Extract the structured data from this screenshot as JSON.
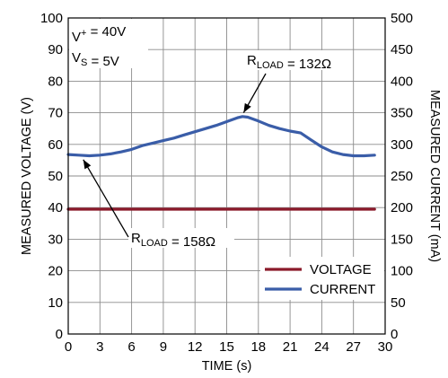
{
  "chart_data": {
    "type": "line",
    "x_axis": {
      "label": "TIME (s)",
      "range": [
        0,
        30
      ],
      "ticks": [
        "0",
        "3",
        "6",
        "9",
        "12",
        "15",
        "18",
        "21",
        "24",
        "27",
        "30"
      ]
    },
    "y_axis_left": {
      "label": "MEASURED VOLTAGE (V)",
      "range": [
        0,
        100
      ],
      "ticks": [
        "0",
        "10",
        "20",
        "30",
        "40",
        "50",
        "60",
        "70",
        "80",
        "90",
        "100"
      ]
    },
    "y_axis_right": {
      "label": "MEASURED CURRENT (mA)",
      "range": [
        0,
        500
      ],
      "ticks": [
        "0",
        "50",
        "100",
        "150",
        "200",
        "250",
        "300",
        "350",
        "400",
        "450",
        "500"
      ]
    },
    "grid": true,
    "legend_position": "bottom-right",
    "series": [
      {
        "name": "VOLTAGE",
        "axis": "left",
        "color": "#8b1a2b",
        "x": [
          0,
          29
        ],
        "y": [
          39.5,
          39.5
        ]
      },
      {
        "name": "CURRENT",
        "axis": "right",
        "color": "#3a5da8",
        "x": [
          0,
          1,
          2,
          3,
          4,
          5,
          6,
          7,
          8,
          9,
          10,
          11,
          12,
          13,
          14,
          15,
          16,
          16.5,
          17,
          18,
          19,
          20,
          21,
          22,
          23,
          24,
          25,
          26,
          27,
          28,
          29
        ],
        "y": [
          284,
          283,
          282,
          283,
          285,
          288,
          292,
          298,
          302,
          306,
          310,
          315,
          320,
          325,
          330,
          336,
          342,
          344,
          343,
          337,
          330,
          325,
          321,
          318,
          307,
          296,
          288,
          284,
          282,
          282,
          283
        ]
      }
    ],
    "annotations": [
      {
        "lines": [
          [
            {
              "t": "V",
              "sub": false
            },
            {
              "t": "+",
              "sup": true
            },
            {
              "t": " = 40V",
              "sub": false
            }
          ],
          [
            {
              "t": "V",
              "sub": false
            },
            {
              "t": "S",
              "sub": true
            },
            {
              "t": " = 5V",
              "sub": false
            }
          ]
        ]
      },
      {
        "parts": [
          {
            "t": "R",
            "sub": false
          },
          {
            "t": "LOAD",
            "sub": true
          },
          {
            "t": " = 132Ω",
            "sub": false
          }
        ],
        "points_to": {
          "x": 16.6,
          "y_current": 343
        }
      },
      {
        "parts": [
          {
            "t": "R",
            "sub": false
          },
          {
            "t": "LOAD",
            "sub": true
          },
          {
            "t": " = 158Ω",
            "sub": false
          }
        ],
        "points_to": {
          "x": 1.0,
          "y_current": 283
        }
      }
    ]
  }
}
